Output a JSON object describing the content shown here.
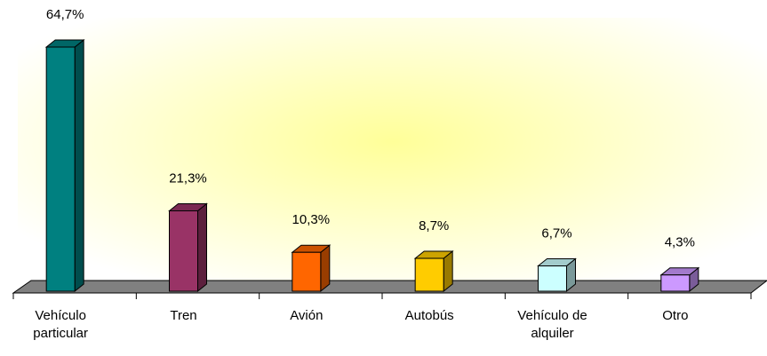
{
  "chart_data": {
    "type": "bar3d",
    "categories": [
      "Vehículo particular",
      "Tren",
      "Avión",
      "Autobús",
      "Vehículo de alquiler",
      "Otro"
    ],
    "values": [
      64.7,
      21.3,
      10.3,
      8.7,
      6.7,
      4.3
    ],
    "value_labels": [
      "64,7%",
      "21,3%",
      "10,3%",
      "8,7%",
      "6,7%",
      "4,3%"
    ],
    "colors": [
      "#008080",
      "#993366",
      "#ff6600",
      "#ffcc00",
      "#ccffff",
      "#cc99ff"
    ]
  }
}
